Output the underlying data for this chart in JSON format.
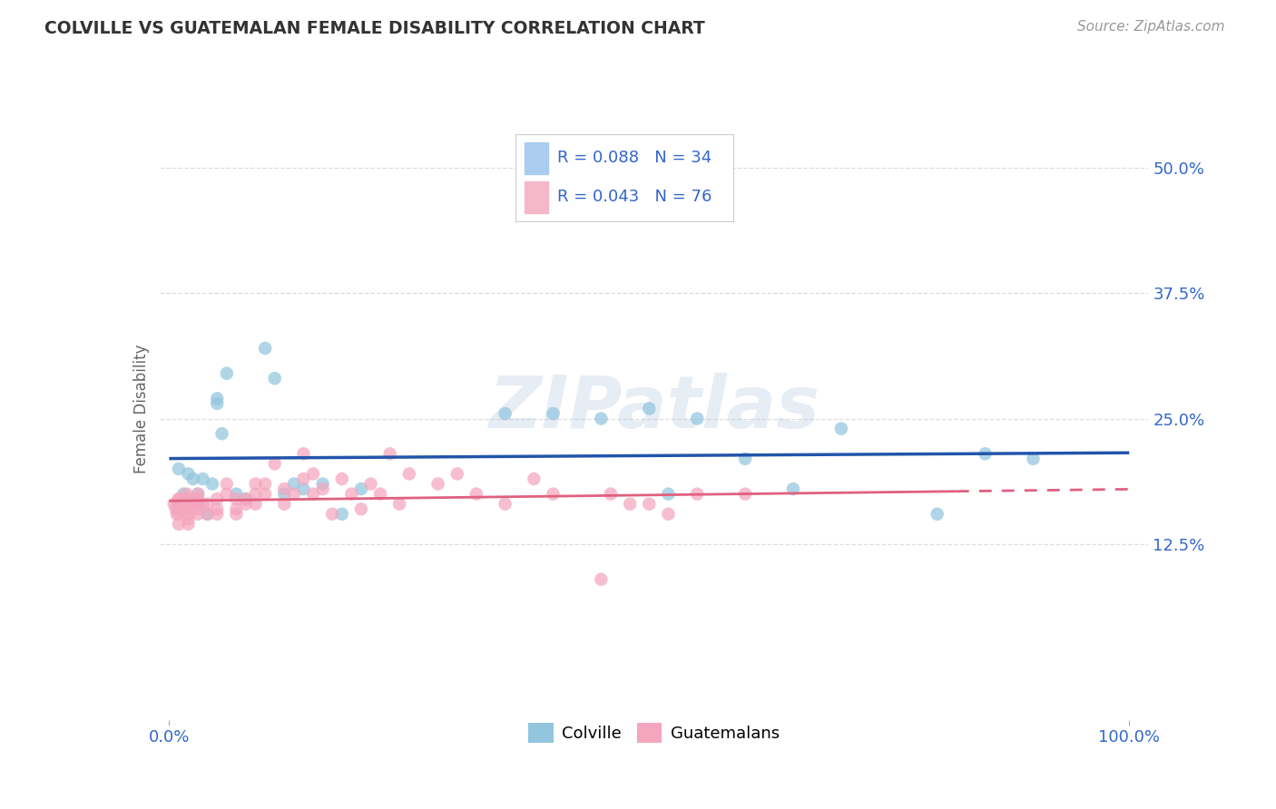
{
  "title": "COLVILLE VS GUATEMALAN FEMALE DISABILITY CORRELATION CHART",
  "source": "Source: ZipAtlas.com",
  "ylabel": "Female Disability",
  "xlim": [
    -0.01,
    1.02
  ],
  "ylim": [
    -0.05,
    0.57
  ],
  "yticks": [
    0.125,
    0.25,
    0.375,
    0.5
  ],
  "ytick_labels": [
    "12.5%",
    "25.0%",
    "37.5%",
    "50.0%"
  ],
  "xticks": [
    0.0,
    1.0
  ],
  "xtick_labels": [
    "0.0%",
    "100.0%"
  ],
  "colville_color": "#92c5de",
  "guatemalan_color": "#f4a6be",
  "colville_R": 0.088,
  "colville_N": 34,
  "guatemalan_R": 0.043,
  "guatemalan_N": 76,
  "colville_x": [
    0.01,
    0.015,
    0.02,
    0.025,
    0.03,
    0.035,
    0.04,
    0.045,
    0.05,
    0.055,
    0.06,
    0.07,
    0.08,
    0.1,
    0.11,
    0.12,
    0.13,
    0.14,
    0.16,
    0.18,
    0.2,
    0.35,
    0.4,
    0.45,
    0.5,
    0.52,
    0.55,
    0.6,
    0.65,
    0.7,
    0.8,
    0.85,
    0.9,
    0.05
  ],
  "colville_y": [
    0.2,
    0.175,
    0.195,
    0.19,
    0.175,
    0.19,
    0.155,
    0.185,
    0.265,
    0.235,
    0.295,
    0.175,
    0.17,
    0.32,
    0.29,
    0.175,
    0.185,
    0.18,
    0.185,
    0.155,
    0.18,
    0.255,
    0.255,
    0.25,
    0.26,
    0.175,
    0.25,
    0.21,
    0.18,
    0.24,
    0.155,
    0.215,
    0.21,
    0.27
  ],
  "guatemalan_x": [
    0.005,
    0.007,
    0.008,
    0.009,
    0.01,
    0.01,
    0.01,
    0.01,
    0.01,
    0.01,
    0.015,
    0.015,
    0.016,
    0.018,
    0.02,
    0.02,
    0.02,
    0.02,
    0.02,
    0.02,
    0.025,
    0.025,
    0.03,
    0.03,
    0.03,
    0.03,
    0.03,
    0.035,
    0.04,
    0.04,
    0.05,
    0.05,
    0.05,
    0.06,
    0.06,
    0.07,
    0.07,
    0.07,
    0.08,
    0.08,
    0.09,
    0.09,
    0.09,
    0.1,
    0.1,
    0.11,
    0.12,
    0.12,
    0.13,
    0.14,
    0.14,
    0.15,
    0.15,
    0.16,
    0.17,
    0.18,
    0.19,
    0.2,
    0.21,
    0.22,
    0.23,
    0.24,
    0.25,
    0.28,
    0.3,
    0.32,
    0.35,
    0.38,
    0.4,
    0.45,
    0.46,
    0.48,
    0.5,
    0.52,
    0.55,
    0.6
  ],
  "guatemalan_y": [
    0.165,
    0.16,
    0.155,
    0.165,
    0.17,
    0.16,
    0.155,
    0.165,
    0.17,
    0.145,
    0.165,
    0.16,
    0.165,
    0.175,
    0.17,
    0.155,
    0.165,
    0.16,
    0.15,
    0.145,
    0.165,
    0.17,
    0.165,
    0.16,
    0.155,
    0.17,
    0.175,
    0.165,
    0.155,
    0.165,
    0.17,
    0.16,
    0.155,
    0.175,
    0.185,
    0.17,
    0.16,
    0.155,
    0.165,
    0.17,
    0.185,
    0.175,
    0.165,
    0.185,
    0.175,
    0.205,
    0.18,
    0.165,
    0.175,
    0.215,
    0.19,
    0.195,
    0.175,
    0.18,
    0.155,
    0.19,
    0.175,
    0.16,
    0.185,
    0.175,
    0.215,
    0.165,
    0.195,
    0.185,
    0.195,
    0.175,
    0.165,
    0.19,
    0.175,
    0.09,
    0.175,
    0.165,
    0.165,
    0.155,
    0.175,
    0.175
  ],
  "title_color": "#333333",
  "axis_label_color": "#666666",
  "tick_color": "#3366cc",
  "grid_color": "#dddddd",
  "watermark": "ZIPatlas",
  "legend_R_color": "#3366cc",
  "legend_box_color_colville": "#aaccee",
  "legend_box_color_guatemalan": "#f4b8c8",
  "blue_trend_color": "#2255aa",
  "pink_trend_color": "#e06080"
}
